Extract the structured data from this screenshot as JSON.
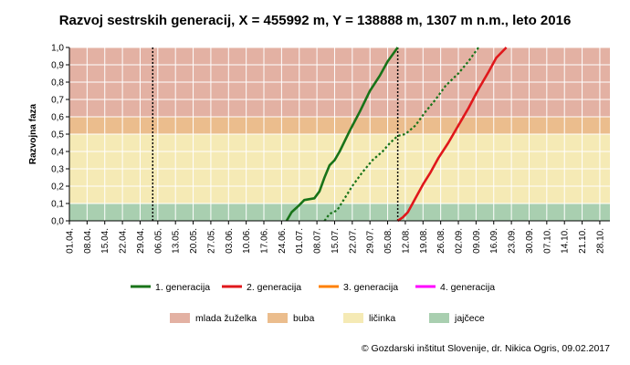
{
  "chart_data": {
    "type": "line",
    "title": "Razvoj sestrskih generacij, X = 455992 m, Y = 138888 m, 1307 m n.m., leto 2016",
    "ylabel": "Razvojna faza",
    "xlabel": "",
    "ylim": [
      0,
      1
    ],
    "y_ticks": [
      "0,0",
      "0,1",
      "0,2",
      "0,3",
      "0,4",
      "0,5",
      "0,6",
      "0,7",
      "0,8",
      "0,9",
      "1,0"
    ],
    "x_ticks": [
      "01.04.",
      "08.04.",
      "15.04.",
      "22.04.",
      "29.04.",
      "06.05.",
      "13.05.",
      "20.05.",
      "27.05.",
      "03.06.",
      "10.06.",
      "17.06.",
      "24.06.",
      "01.07.",
      "08.07.",
      "15.07.",
      "22.07.",
      "29.07.",
      "05.08.",
      "12.08.",
      "19.08.",
      "26.08.",
      "02.09.",
      "09.09.",
      "16.09.",
      "23.09.",
      "30.09.",
      "07.10.",
      "14.10.",
      "21.10.",
      "28.10."
    ],
    "x_domain_days": [
      0,
      214
    ],
    "vertical_markers": [
      {
        "date": "04.05.",
        "style": "dotted"
      },
      {
        "date": "09.08.",
        "style": "dotted"
      }
    ],
    "bands": [
      {
        "name": "jajčece",
        "from": 0.0,
        "to": 0.1,
        "color": "#a9cfb0"
      },
      {
        "name": "ličinka",
        "from": 0.1,
        "to": 0.5,
        "color": "#f5eab5"
      },
      {
        "name": "buba",
        "from": 0.5,
        "to": 0.6,
        "color": "#ebbd8d"
      },
      {
        "name": "mlada žuželka",
        "from": 0.6,
        "to": 1.0,
        "color": "#e3b1a3"
      }
    ],
    "series": [
      {
        "name": "1. generacija",
        "color": "#187318",
        "style": "solid",
        "points": [
          [
            "26.06.",
            0.0
          ],
          [
            "28.06.",
            0.05
          ],
          [
            "01.07.",
            0.09
          ],
          [
            "03.07.",
            0.12
          ],
          [
            "07.07.",
            0.13
          ],
          [
            "09.07.",
            0.17
          ],
          [
            "11.07.",
            0.25
          ],
          [
            "13.07.",
            0.32
          ],
          [
            "15.07.",
            0.35
          ],
          [
            "17.07.",
            0.4
          ],
          [
            "21.07.",
            0.52
          ],
          [
            "25.07.",
            0.63
          ],
          [
            "29.07.",
            0.75
          ],
          [
            "02.08.",
            0.84
          ],
          [
            "05.08.",
            0.92
          ],
          [
            "09.08.",
            1.0
          ]
        ]
      },
      {
        "name": "1. generacija",
        "color": "#187318",
        "style": "dotted",
        "points": [
          [
            "11.07.",
            0.0
          ],
          [
            "13.07.",
            0.04
          ],
          [
            "16.07.",
            0.06
          ],
          [
            "19.07.",
            0.13
          ],
          [
            "22.07.",
            0.2
          ],
          [
            "26.07.",
            0.28
          ],
          [
            "30.07.",
            0.35
          ],
          [
            "03.08.",
            0.4
          ],
          [
            "06.08.",
            0.45
          ],
          [
            "09.08.",
            0.49
          ],
          [
            "12.08.",
            0.5
          ],
          [
            "16.08.",
            0.55
          ],
          [
            "20.08.",
            0.63
          ],
          [
            "24.08.",
            0.7
          ],
          [
            "28.08.",
            0.78
          ],
          [
            "02.09.",
            0.85
          ],
          [
            "06.09.",
            0.92
          ],
          [
            "10.09.",
            1.0
          ]
        ]
      },
      {
        "name": "2. generacija",
        "color": "#e0171b",
        "style": "solid",
        "points": [
          [
            "09.08.",
            0.0
          ],
          [
            "11.08.",
            0.02
          ],
          [
            "13.08.",
            0.05
          ],
          [
            "16.08.",
            0.13
          ],
          [
            "19.08.",
            0.21
          ],
          [
            "22.08.",
            0.28
          ],
          [
            "25.08.",
            0.36
          ],
          [
            "29.08.",
            0.45
          ],
          [
            "02.09.",
            0.55
          ],
          [
            "06.09.",
            0.65
          ],
          [
            "10.09.",
            0.76
          ],
          [
            "14.09.",
            0.86
          ],
          [
            "17.09.",
            0.94
          ],
          [
            "21.09.",
            1.0
          ]
        ]
      },
      {
        "name": "3. generacija",
        "color": "#ff8000",
        "style": "solid",
        "points": []
      },
      {
        "name": "4. generacija",
        "color": "#ff00ff",
        "style": "solid",
        "points": []
      }
    ]
  },
  "legend_series": [
    {
      "label": "1. generacija",
      "color": "#187318"
    },
    {
      "label": "2. generacija",
      "color": "#e0171b"
    },
    {
      "label": "3. generacija",
      "color": "#ff8000"
    },
    {
      "label": "4. generacija",
      "color": "#ff00ff"
    }
  ],
  "legend_bands": [
    {
      "label": "mlada žuželka",
      "color": "#e3b1a3"
    },
    {
      "label": "buba",
      "color": "#ebbd8d"
    },
    {
      "label": "ličinka",
      "color": "#f5eab5"
    },
    {
      "label": "jajčece",
      "color": "#a9cfb0"
    }
  ],
  "credit": "© Gozdarski inštitut Slovenije, dr. Nikica Ogris, 09.02.2017"
}
